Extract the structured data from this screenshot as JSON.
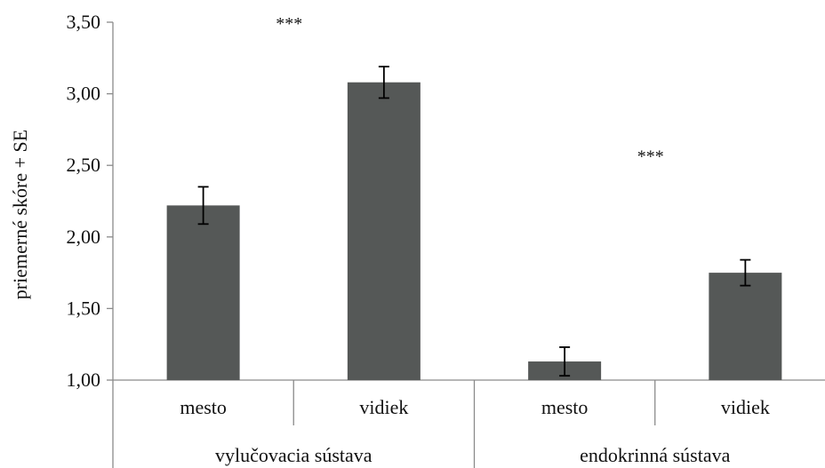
{
  "chart_data": {
    "type": "bar",
    "ylabel": "priemerné skóre + SE",
    "ylim": [
      1.0,
      3.5
    ],
    "yticks": [
      "1,00",
      "1,50",
      "2,00",
      "2,50",
      "3,00",
      "3,50"
    ],
    "ytick_values": [
      1.0,
      1.5,
      2.0,
      2.5,
      3.0,
      3.5
    ],
    "groups": [
      {
        "label": "vylučovacia sústava",
        "significance": "***",
        "bars": [
          {
            "category": "mesto",
            "value": 2.22,
            "se": 0.13
          },
          {
            "category": "vidiek",
            "value": 3.08,
            "se": 0.11
          }
        ]
      },
      {
        "label": "endokrinná sústava",
        "significance": "***",
        "bars": [
          {
            "category": "mesto",
            "value": 1.13,
            "se": 0.1
          },
          {
            "category": "vidiek",
            "value": 1.75,
            "se": 0.09
          }
        ]
      }
    ],
    "bar_color": "#555857",
    "grid": false,
    "legend": "none"
  }
}
